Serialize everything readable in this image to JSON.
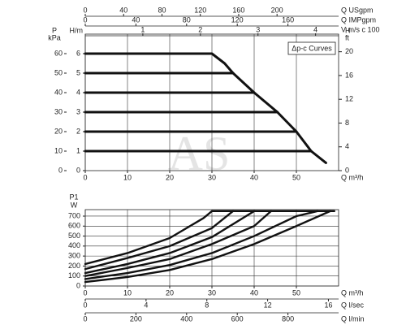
{
  "watermark": "AS",
  "chart_data": [
    {
      "type": "line",
      "annotation": "Δp-c Curves",
      "ylabel": "H/m",
      "xlabel": "Q m³/h",
      "xlim": [
        0,
        60
      ],
      "xticks": [
        0,
        10,
        20,
        30,
        40,
        50
      ],
      "ylim": [
        0,
        7
      ],
      "yticks": [
        0,
        1,
        2,
        3,
        4,
        5,
        6
      ],
      "grid": "x",
      "color": "#111111",
      "extra_axes": [
        {
          "side": "left",
          "label": [
            "P",
            "kPa"
          ],
          "lim": [
            0,
            70
          ],
          "ticks": [
            0,
            10,
            20,
            30,
            40,
            50,
            60
          ]
        },
        {
          "side": "right",
          "label": [
            "H",
            "ft"
          ],
          "lim": [
            0,
            22.96
          ],
          "ticks": [
            0,
            4,
            8,
            12,
            16,
            20
          ]
        },
        {
          "side": "top",
          "label": "Q USgpm",
          "lim": [
            0,
            264.2
          ],
          "ticks": [
            0,
            40,
            80,
            120,
            160,
            200
          ]
        },
        {
          "side": "top",
          "label": "Q IMPgpm",
          "lim": [
            0,
            200
          ],
          "ticks": [
            0,
            40,
            80,
            120,
            160
          ]
        },
        {
          "side": "top",
          "label": "V m/s c 100",
          "lim": [
            0,
            4.4
          ],
          "ticks": [
            1,
            2,
            3,
            4
          ]
        }
      ],
      "series": [
        {
          "x": [
            0,
            30,
            33,
            35,
            40,
            45.5,
            50,
            53.5,
            57
          ],
          "values": [
            6,
            6,
            5.5,
            5,
            4,
            3,
            2,
            1,
            0.4
          ]
        },
        {
          "x": [
            0,
            35
          ],
          "values": [
            5,
            5
          ]
        },
        {
          "x": [
            0,
            40
          ],
          "values": [
            4,
            4
          ]
        },
        {
          "x": [
            0,
            45.5
          ],
          "values": [
            3,
            3
          ]
        },
        {
          "x": [
            0,
            50
          ],
          "values": [
            2,
            2
          ]
        },
        {
          "x": [
            0,
            53.5
          ],
          "values": [
            1,
            1
          ]
        }
      ]
    },
    {
      "type": "line",
      "ylabel": [
        "P1",
        "W"
      ],
      "xlabel": "Q m³/h",
      "xlim": [
        0,
        60
      ],
      "xticks": [
        0,
        10,
        20,
        30,
        40,
        50
      ],
      "ylim": [
        0,
        765
      ],
      "yticks": [
        0,
        100,
        200,
        300,
        400,
        500,
        600,
        700
      ],
      "grid": "xy",
      "color": "#111111",
      "extra_axes": [
        {
          "side": "bottom",
          "label": "Q l/sec",
          "lim": [
            0,
            16.67
          ],
          "ticks": [
            0,
            4,
            8,
            12,
            16
          ]
        },
        {
          "side": "bottom",
          "label": "Q l/min",
          "lim": [
            0,
            1000
          ],
          "ticks": [
            0,
            200,
            400,
            600,
            800
          ]
        }
      ],
      "series": [
        {
          "x": [
            0,
            10,
            20,
            28,
            30,
            59
          ],
          "values": [
            220,
            330,
            480,
            680,
            750,
            750
          ]
        },
        {
          "x": [
            0,
            10,
            20,
            30,
            35
          ],
          "values": [
            170,
            280,
            400,
            580,
            750
          ]
        },
        {
          "x": [
            0,
            10,
            20,
            30,
            40
          ],
          "values": [
            130,
            220,
            330,
            490,
            750
          ]
        },
        {
          "x": [
            0,
            10,
            20,
            30,
            40,
            44
          ],
          "values": [
            100,
            180,
            270,
            420,
            600,
            750
          ]
        },
        {
          "x": [
            0,
            10,
            20,
            30,
            40,
            50,
            55
          ],
          "values": [
            70,
            130,
            210,
            330,
            500,
            700,
            750
          ]
        },
        {
          "x": [
            0,
            10,
            20,
            30,
            40,
            50,
            58
          ],
          "values": [
            40,
            90,
            160,
            270,
            420,
            600,
            750
          ]
        }
      ]
    }
  ]
}
